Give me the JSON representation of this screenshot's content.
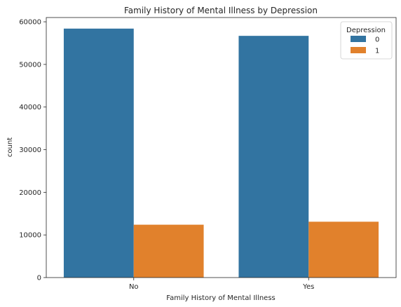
{
  "chart_data": {
    "type": "bar",
    "title": "Family History of Mental Illness by Depression",
    "xlabel": "Family History of Mental Illness",
    "ylabel": "count",
    "categories": [
      "No",
      "Yes"
    ],
    "series": [
      {
        "name": "0",
        "values": [
          58400,
          56700
        ],
        "color": "#3274a1"
      },
      {
        "name": "1",
        "values": [
          12400,
          13100
        ],
        "color": "#e1812c"
      }
    ],
    "ylim": [
      0,
      61000
    ],
    "yticks": [
      0,
      10000,
      20000,
      30000,
      40000,
      50000,
      60000
    ],
    "ytick_labels": [
      "0",
      "10000",
      "20000",
      "30000",
      "40000",
      "50000",
      "60000"
    ],
    "legend": {
      "title": "Depression",
      "placement": "top-right"
    },
    "grid": false
  }
}
